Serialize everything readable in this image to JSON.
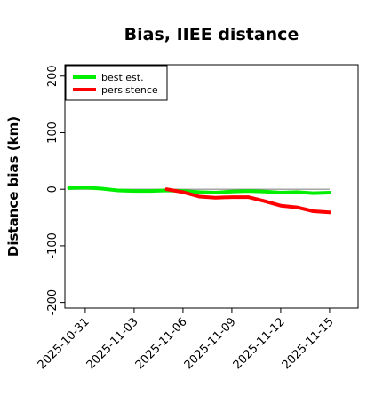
{
  "chart_data": {
    "type": "line",
    "title": "Bias, IIEE distance",
    "xlabel": "",
    "ylabel": "Distance bias (km)",
    "xlim": [
      "2025-10-29T18:00",
      "2025-11-16T18:00"
    ],
    "ylim": [
      -210,
      220
    ],
    "yticks": [
      -200,
      -100,
      0,
      100,
      200
    ],
    "xticks": [
      "2025-10-31",
      "2025-11-03",
      "2025-11-06",
      "2025-11-09",
      "2025-11-12",
      "2025-11-15"
    ],
    "reference_line": {
      "y": 0,
      "color": "#888888"
    },
    "grid": false,
    "legend": {
      "position": "top-left"
    },
    "series": [
      {
        "name": "best est.",
        "color": "#00ee00",
        "x": [
          "2025-10-30",
          "2025-10-31",
          "2025-11-01",
          "2025-11-02",
          "2025-11-03",
          "2025-11-04",
          "2025-11-05",
          "2025-11-06",
          "2025-11-07",
          "2025-11-08",
          "2025-11-09",
          "2025-11-10",
          "2025-11-11",
          "2025-11-12",
          "2025-11-13",
          "2025-11-14",
          "2025-11-15"
        ],
        "y": [
          2,
          3,
          1,
          -2,
          -3,
          -3,
          -2,
          -3,
          -5,
          -6,
          -4,
          -3,
          -4,
          -6,
          -5,
          -7,
          -6
        ]
      },
      {
        "name": "persistence",
        "color": "#ff0000",
        "x": [
          "2025-11-05",
          "2025-11-06",
          "2025-11-07",
          "2025-11-08",
          "2025-11-09",
          "2025-11-10",
          "2025-11-11",
          "2025-11-12",
          "2025-11-13",
          "2025-11-14",
          "2025-11-15"
        ],
        "y": [
          0,
          -5,
          -13,
          -15,
          -14,
          -14,
          -21,
          -29,
          -32,
          -39,
          -41
        ]
      }
    ]
  }
}
